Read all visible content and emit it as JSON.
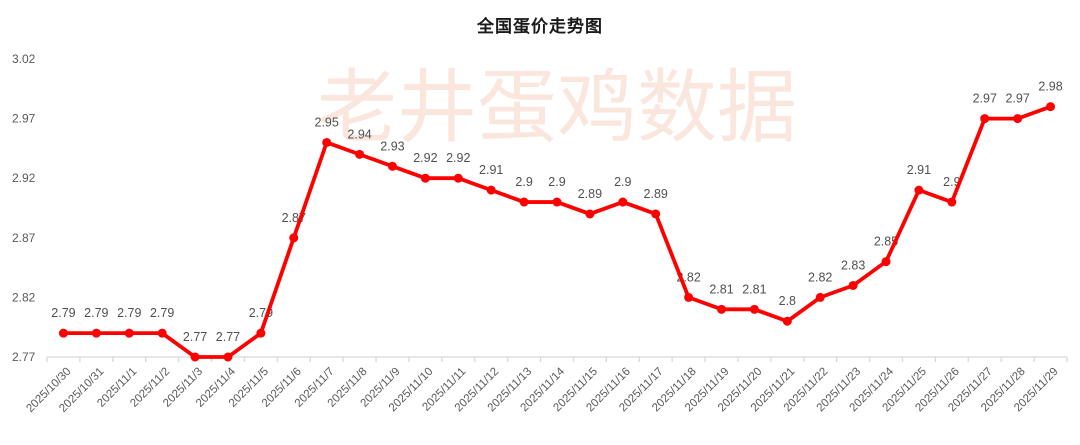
{
  "chart_data": {
    "type": "line",
    "title": "全国蛋价走势图",
    "xlabel": "",
    "ylabel": "",
    "x": [
      "2025/10/30",
      "2025/10/31",
      "2025/11/1",
      "2025/11/2",
      "2025/11/3",
      "2025/11/4",
      "2025/11/5",
      "2025/11/6",
      "2025/11/7",
      "2025/11/8",
      "2025/11/9",
      "2025/11/10",
      "2025/11/11",
      "2025/11/12",
      "2025/11/13",
      "2025/11/14",
      "2025/11/15",
      "2025/11/16",
      "2025/11/17",
      "2025/11/18",
      "2025/11/19",
      "2025/11/20",
      "2025/11/21",
      "2025/11/22",
      "2025/11/23",
      "2025/11/24",
      "2025/11/25",
      "2025/11/26",
      "2025/11/27",
      "2025/11/28",
      "2025/11/29"
    ],
    "values": [
      2.79,
      2.79,
      2.79,
      2.79,
      2.77,
      2.77,
      2.79,
      2.87,
      2.95,
      2.94,
      2.93,
      2.92,
      2.92,
      2.91,
      2.9,
      2.9,
      2.89,
      2.9,
      2.89,
      2.82,
      2.81,
      2.81,
      2.8,
      2.82,
      2.83,
      2.85,
      2.91,
      2.9,
      2.97,
      2.97,
      2.98
    ],
    "point_labels": [
      "2.79",
      "2.79",
      "2.79",
      "2.79",
      "2.77",
      "2.77",
      "2.79",
      "2.87",
      "2.95",
      "2.94",
      "2.93",
      "2.92",
      "2.92",
      "2.91",
      "2.9",
      "2.9",
      "2.89",
      "2.9",
      "2.89",
      "2.82",
      "2.81",
      "2.81",
      "2.8",
      "2.82",
      "2.83",
      "2.85",
      "2.91",
      "2.9",
      "2.97",
      "2.97",
      "2.98"
    ],
    "ylim": [
      2.77,
      3.02
    ],
    "yticks": [
      "2.77",
      "2.82",
      "2.87",
      "2.92",
      "2.97",
      "3.02"
    ],
    "grid": false,
    "legend": "none",
    "line_color": "#ff0000",
    "marker": "circle",
    "axis_color": "#d9d9d9",
    "tick_label_color": "#595959",
    "point_label_color": "#505050"
  },
  "watermark": {
    "text": "老井蛋鸡数据",
    "color": "rgba(232, 115, 69, 0.18)"
  }
}
